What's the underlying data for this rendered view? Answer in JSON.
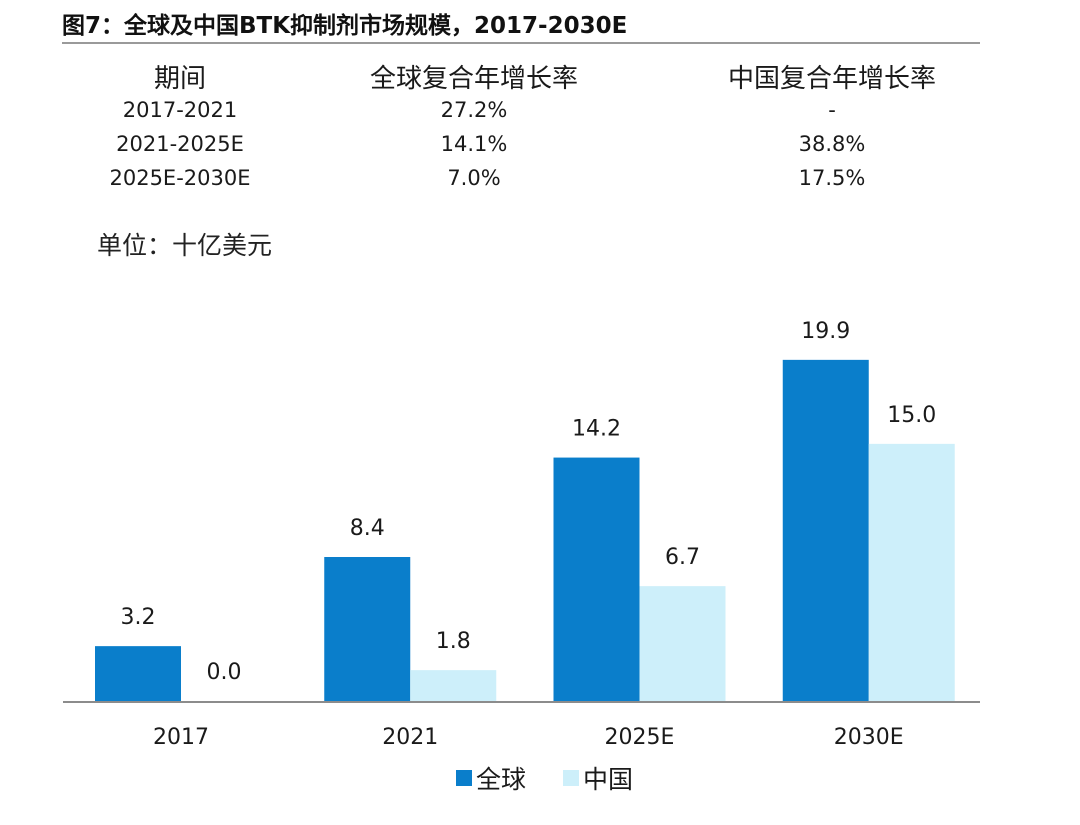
{
  "header": {
    "title": "图7：全球及中国BTK抑制剂市场规模，2017-2030E"
  },
  "cagr_table": {
    "columns": [
      "期间",
      "全球复合年增长率",
      "中国复合年增长率"
    ],
    "rows": [
      [
        "2017-2021",
        "27.2%",
        "-"
      ],
      [
        "2021-2025E",
        "14.1%",
        "38.8%"
      ],
      [
        "2025E-2030E",
        "7.0%",
        "17.5%"
      ]
    ]
  },
  "unit_label": "单位：十亿美元",
  "chart_data": {
    "type": "bar",
    "categories": [
      "2017",
      "2021",
      "2025E",
      "2030E"
    ],
    "series": [
      {
        "name": "全球",
        "values": [
          3.2,
          8.4,
          14.2,
          19.9
        ],
        "labels": [
          "3.2",
          "8.4",
          "14.2",
          "19.9"
        ],
        "color": "#0a7ecb"
      },
      {
        "name": "中国",
        "values": [
          0.0,
          1.8,
          6.7,
          15.0
        ],
        "labels": [
          "0.0",
          "1.8",
          "6.7",
          "15.0"
        ],
        "color": "#cdeffa"
      }
    ],
    "title": "",
    "xlabel": "",
    "ylabel": "",
    "ylim": [
      0,
      21
    ],
    "grid": false,
    "legend_position": "bottom"
  }
}
